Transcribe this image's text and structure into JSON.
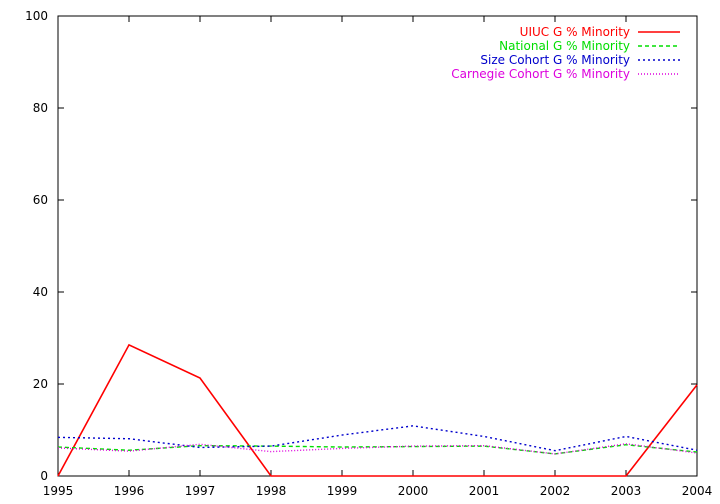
{
  "chart_data": {
    "type": "line",
    "title": "",
    "xlabel": "",
    "ylabel": "",
    "xlim": [
      1995,
      2004
    ],
    "ylim": [
      0,
      100
    ],
    "x": [
      1995,
      1996,
      1997,
      1998,
      1999,
      2000,
      2001,
      2002,
      2003,
      2004
    ],
    "x_ticks": [
      "1995",
      "1996",
      "1997",
      "1998",
      "1999",
      "2000",
      "2001",
      "2002",
      "2003",
      "2004"
    ],
    "y_ticks": [
      "0",
      "20",
      "40",
      "60",
      "80",
      "100"
    ],
    "grid": false,
    "legend_position": "top-right",
    "series": [
      {
        "name": "UIUC G % Minority",
        "color": "#ff0000",
        "dash": "solid",
        "values": [
          0,
          28.5,
          21.3,
          0,
          0,
          0,
          0,
          0,
          0,
          19.8
        ]
      },
      {
        "name": "National G % Minority",
        "color": "#00dd00",
        "dash": "dashed",
        "values": [
          6.3,
          5.6,
          6.6,
          6.5,
          6.3,
          6.4,
          6.5,
          4.8,
          6.8,
          5.2
        ]
      },
      {
        "name": "Size Cohort G % Minority",
        "color": "#0000cc",
        "dash": "dotted",
        "values": [
          8.4,
          8.1,
          6.2,
          6.5,
          8.9,
          10.9,
          8.6,
          5.5,
          8.6,
          5.6
        ]
      },
      {
        "name": "Carnegie Cohort G % Minority",
        "color": "#dd00dd",
        "dash": "dotted-fine",
        "values": [
          6.1,
          5.4,
          6.9,
          5.3,
          6.0,
          6.5,
          6.6,
          4.8,
          7.0,
          5.0
        ]
      }
    ]
  }
}
